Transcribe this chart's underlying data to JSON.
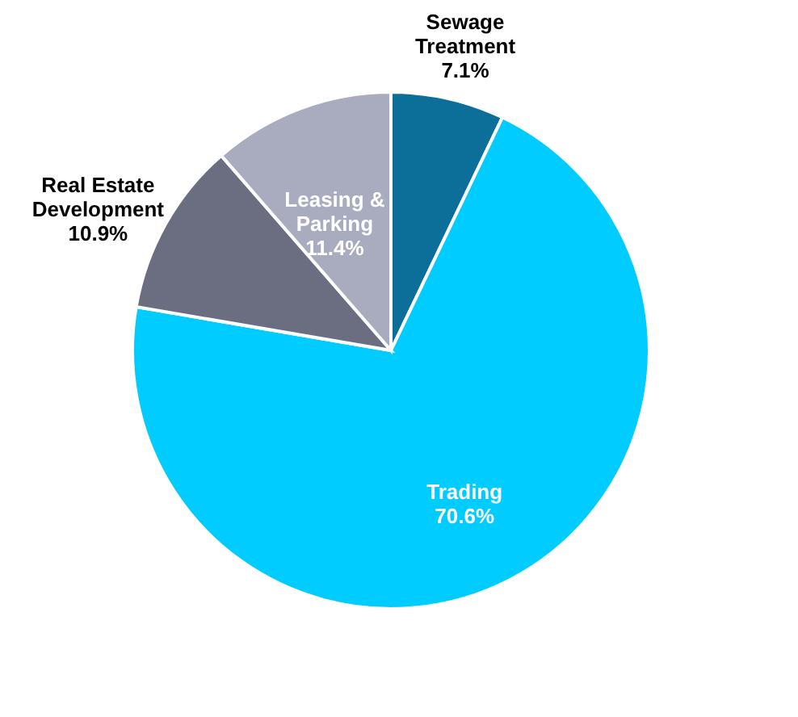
{
  "chart_data": {
    "type": "pie",
    "categories": [
      "Sewage Treatment",
      "Trading",
      "Real Estate Development",
      "Leasing & Parking"
    ],
    "values": [
      7.1,
      70.6,
      10.9,
      11.4
    ],
    "value_labels": [
      "7.1%",
      "70.6%",
      "10.9%",
      "11.4%"
    ],
    "colors": [
      "#0b6f9a",
      "#00ccff",
      "#6b6e80",
      "#a9acbf"
    ],
    "legend": false
  }
}
